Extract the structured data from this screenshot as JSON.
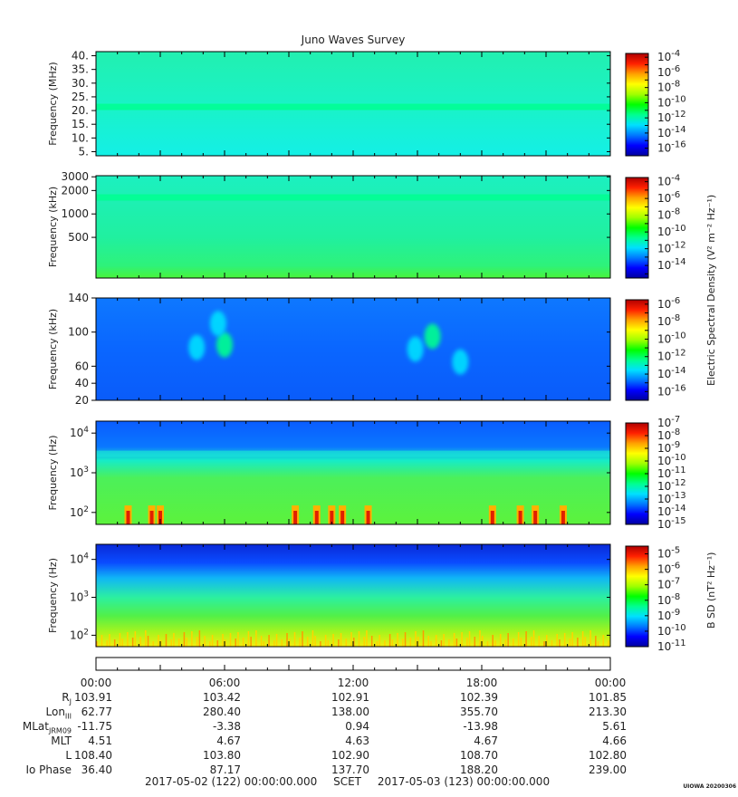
{
  "chart_data": [
    {
      "type": "heatmap",
      "panel": "hfr-high",
      "ylabel": "Frequency (MHz)",
      "yticks": [
        "40.",
        "35.",
        "30.",
        "25.",
        "20.",
        "15.",
        "10.",
        "5."
      ],
      "ylim": [
        3.5,
        41.5
      ],
      "colorbar": {
        "exponents": [
          "-4",
          "-6",
          "-8",
          "-10",
          "-12",
          "-14",
          "-16"
        ],
        "log_range": [
          -17,
          -3.5
        ]
      },
      "band_features": [
        {
          "y": 21.5,
          "level": -11
        }
      ]
    },
    {
      "type": "heatmap",
      "panel": "hfr-low",
      "ylabel": "Frequency (kHz)",
      "yticks": [
        "3000",
        "2000",
        "1000",
        "500"
      ],
      "ylim": [
        150,
        3100
      ],
      "colorbar": {
        "exponents": [
          "-4",
          "-6",
          "-8",
          "-10",
          "-12",
          "-14"
        ],
        "log_range": [
          -15.5,
          -3.5
        ]
      },
      "band_features": [
        {
          "y": 1650,
          "level": -11
        }
      ]
    },
    {
      "type": "heatmap",
      "panel": "lfr-high",
      "ylabel": "Frequency (kHz)",
      "yticks": [
        "140",
        "100",
        "60",
        "40",
        "20"
      ],
      "ylim": [
        20,
        140
      ],
      "colorbar": {
        "exponents": [
          "-6",
          "-8",
          "-10",
          "-12",
          "-14",
          "-16"
        ],
        "log_range": [
          -17,
          -5.5
        ]
      },
      "bursts": [
        {
          "hour": 6.0,
          "freq": 85,
          "level": -12
        },
        {
          "hour": 4.7,
          "freq": 82,
          "level": -13
        },
        {
          "hour": 5.7,
          "freq": 110,
          "level": -13
        },
        {
          "hour": 15.7,
          "freq": 95,
          "level": -12
        },
        {
          "hour": 14.9,
          "freq": 80,
          "level": -13
        },
        {
          "hour": 17.0,
          "freq": 65,
          "level": -13
        }
      ]
    },
    {
      "type": "heatmap",
      "panel": "lfr-low-electric",
      "ylabel": "Frequency (Hz)",
      "yticks": [
        "10^4",
        "10^3",
        "10^2"
      ],
      "ylim": [
        50,
        20000
      ],
      "colorbar": {
        "exponents": [
          "-7",
          "-8",
          "-9",
          "-10",
          "-11",
          "-12",
          "-13",
          "-14",
          "-15"
        ],
        "log_range": [
          -15,
          -7
        ]
      },
      "intense_bursts": [
        1.5,
        2.6,
        3.0,
        9.3,
        10.3,
        11.0,
        11.5,
        12.7,
        18.5,
        19.8,
        20.5,
        21.8
      ]
    },
    {
      "type": "heatmap",
      "panel": "lfr-low-magnetic",
      "ylabel": "Frequency (Hz)",
      "yticks": [
        "10^4",
        "10^3",
        "10^2"
      ],
      "ylim": [
        50,
        25000
      ],
      "colorbar": {
        "exponents": [
          "-5",
          "-6",
          "-7",
          "-8",
          "-9",
          "-10",
          "-11"
        ],
        "log_range": [
          -11,
          -4.5
        ]
      }
    }
  ],
  "title": "Juno Waves Survey",
  "colorbar_labels": {
    "electric": "Electric Spectral Density (V² m⁻² Hz⁻¹)",
    "magnetic": "B SD (nT² Hz⁻¹)"
  },
  "time_axis": {
    "ticks": [
      "00:00",
      "06:00",
      "12:00",
      "18:00",
      "00:00"
    ],
    "hours": [
      0,
      6,
      12,
      18,
      24
    ]
  },
  "ephemeris": [
    {
      "label": "RJ",
      "values": [
        "103.91",
        "103.42",
        "102.91",
        "102.39",
        "101.85"
      ]
    },
    {
      "label": "LonIII",
      "values": [
        "62.77",
        "280.40",
        "138.00",
        "355.70",
        "213.30"
      ]
    },
    {
      "label": "MLat JRM09",
      "values": [
        "-11.75",
        "-3.38",
        "0.94",
        "-13.98",
        "5.61"
      ]
    },
    {
      "label": "MLT",
      "values": [
        "4.51",
        "4.67",
        "4.63",
        "4.67",
        "4.66"
      ]
    },
    {
      "label": "L",
      "values": [
        "108.40",
        "103.80",
        "102.90",
        "108.70",
        "102.80"
      ]
    },
    {
      "label": "Io Phase",
      "values": [
        "36.40",
        "87.17",
        "137.70",
        "188.20",
        "239.00"
      ]
    }
  ],
  "scet": {
    "start": "2017-05-02 (122) 00:00:00.000",
    "label": "SCET",
    "end": "2017-05-03 (123) 00:00:00.000"
  },
  "stamp": "UIOWA 20200306",
  "colors": {
    "scale": [
      "#0000a0",
      "#0000ff",
      "#0078ff",
      "#00e0ff",
      "#00ff90",
      "#00ff00",
      "#a0ff00",
      "#ffff00",
      "#ffa000",
      "#ff2000",
      "#b00000"
    ]
  }
}
